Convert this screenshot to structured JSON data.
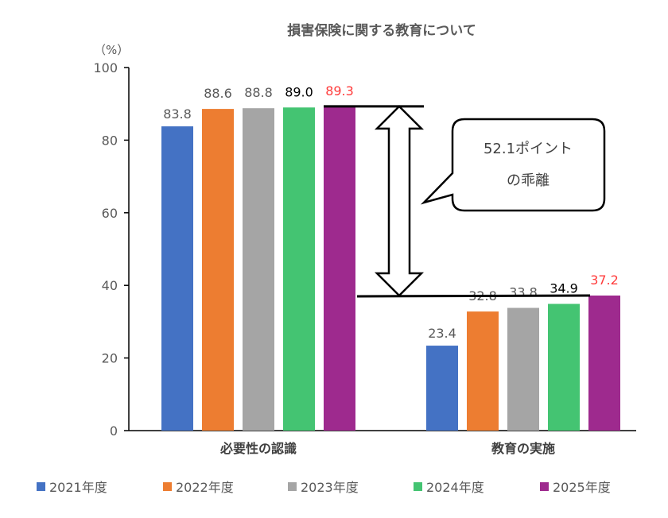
{
  "chart_data": {
    "type": "bar",
    "title": "損害保険に関する教育について",
    "ylabel": "（%）",
    "ylim": [
      0,
      100
    ],
    "yticks": [
      0,
      20,
      40,
      60,
      80,
      100
    ],
    "grid": false,
    "legend_position": "bottom",
    "categories": [
      "必要性の認識",
      "教育の実施"
    ],
    "series": [
      {
        "name": "2021年度",
        "values": [
          83.8,
          23.4
        ],
        "color": "#4472C4",
        "label_color": "#595959"
      },
      {
        "name": "2022年度",
        "values": [
          88.6,
          32.8
        ],
        "color": "#ED7D31",
        "label_color": "#595959"
      },
      {
        "name": "2023年度",
        "values": [
          88.8,
          33.8
        ],
        "color": "#A5A5A5",
        "label_color": "#595959"
      },
      {
        "name": "2024年度",
        "values": [
          89.0,
          34.9
        ],
        "color": "#44C472",
        "label_color": "#000000"
      },
      {
        "name": "2025年度",
        "values": [
          89.3,
          37.2
        ],
        "color": "#9E2A8E",
        "label_color": "#FF3B3B"
      }
    ],
    "annotation": {
      "line1": "52.1ポイント",
      "line2": "の乖離",
      "from": 37.2,
      "to": 89.3
    }
  }
}
